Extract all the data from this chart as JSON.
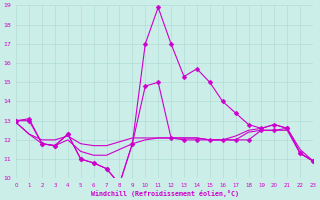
{
  "xlabel": "Windchill (Refroidissement éolien,°C)",
  "background_color": "#cceee8",
  "grid_color": "#b0ddd4",
  "line_color": "#cc00cc",
  "x": [
    0,
    1,
    2,
    3,
    4,
    5,
    6,
    7,
    8,
    9,
    10,
    11,
    12,
    13,
    14,
    15,
    16,
    17,
    18,
    19,
    20,
    21,
    22,
    23
  ],
  "line1": [
    13.0,
    13.1,
    11.8,
    11.7,
    12.3,
    11.0,
    10.8,
    10.5,
    9.7,
    11.8,
    17.0,
    18.9,
    17.0,
    15.3,
    15.7,
    15.0,
    14.0,
    13.4,
    12.8,
    12.6,
    12.8,
    12.6,
    11.3,
    10.9
  ],
  "line2": [
    13.0,
    13.0,
    11.8,
    11.7,
    12.3,
    11.0,
    10.8,
    10.5,
    9.7,
    11.8,
    14.8,
    15.0,
    12.1,
    12.0,
    12.0,
    12.0,
    12.0,
    12.0,
    12.0,
    12.5,
    12.5,
    12.6,
    11.3,
    10.9
  ],
  "line3": [
    12.9,
    12.3,
    11.8,
    11.7,
    12.0,
    11.4,
    11.2,
    11.2,
    11.5,
    11.8,
    12.0,
    12.1,
    12.1,
    12.1,
    12.1,
    12.0,
    12.0,
    12.0,
    12.4,
    12.5,
    12.5,
    12.5,
    11.3,
    10.9
  ],
  "line4": [
    12.9,
    12.3,
    12.0,
    12.0,
    12.2,
    11.8,
    11.7,
    11.7,
    11.9,
    12.1,
    12.1,
    12.1,
    12.1,
    12.1,
    12.1,
    12.0,
    12.0,
    12.2,
    12.5,
    12.6,
    12.8,
    12.6,
    11.5,
    10.9
  ],
  "ylim": [
    10,
    19
  ],
  "xlim": [
    0,
    23
  ],
  "yticks": [
    10,
    11,
    12,
    13,
    14,
    15,
    16,
    17,
    18,
    19
  ],
  "xticks": [
    0,
    1,
    2,
    3,
    4,
    5,
    6,
    7,
    8,
    9,
    10,
    11,
    12,
    13,
    14,
    15,
    16,
    17,
    18,
    19,
    20,
    21,
    22,
    23
  ]
}
